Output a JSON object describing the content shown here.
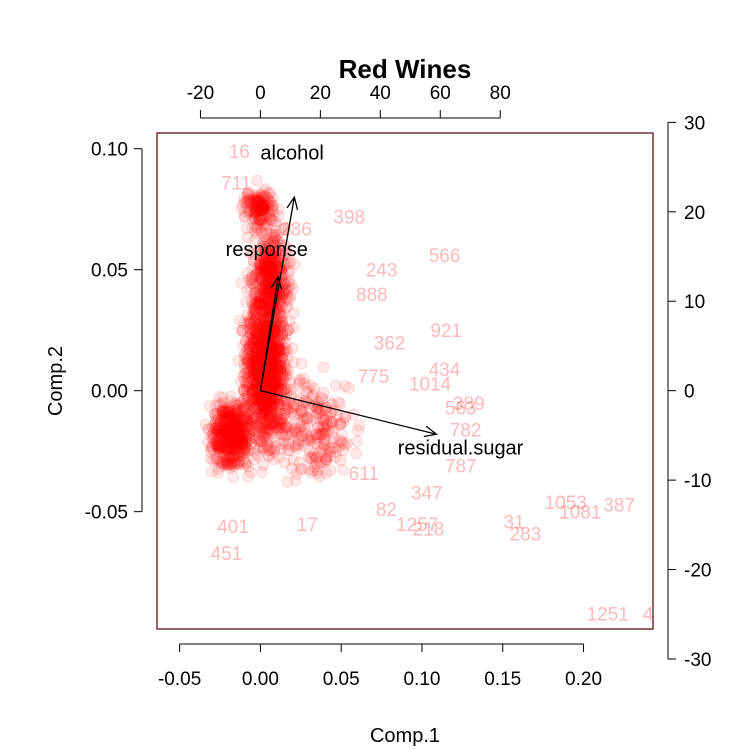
{
  "chart_data": {
    "type": "scatter",
    "title": "Red Wines",
    "xlabel": "Comp.1",
    "ylabel": "Comp.2",
    "xlim": [
      -0.064,
      0.243
    ],
    "ylim": [
      -0.0985,
      0.1065
    ],
    "x_ticks": [
      -0.05,
      0.0,
      0.05,
      0.1,
      0.15,
      0.2
    ],
    "x_tick_labels": [
      "-0.05",
      "0.00",
      "0.05",
      "0.10",
      "0.15",
      "0.20"
    ],
    "y_ticks": [
      -0.05,
      0.0,
      0.05,
      0.1
    ],
    "y_tick_labels": [
      "-0.05",
      "0.00",
      "0.05",
      "0.10"
    ],
    "top_axis": {
      "ticks": [
        -20,
        0,
        20,
        40,
        60,
        80
      ],
      "labels": [
        "-20",
        "0",
        "20",
        "40",
        "60",
        "80"
      ],
      "comp1_per_unit": 0.0018555
    },
    "right_axis": {
      "ticks": [
        -30,
        -20,
        -10,
        0,
        10,
        20,
        30
      ],
      "labels": [
        "-30",
        "-20",
        "-10",
        "0",
        "10",
        "20",
        "30"
      ],
      "comp2_per_unit": 0.0036964
    },
    "grid": false,
    "point_color": "#ff0000",
    "frame_color": "#4d0000",
    "points": [
      {
        "label": "16",
        "x": -0.013,
        "y": 0.099
      },
      {
        "label": "711",
        "x": -0.015,
        "y": 0.086
      },
      {
        "label": "398",
        "x": 0.055,
        "y": 0.072
      },
      {
        "label": "236",
        "x": 0.022,
        "y": 0.067
      },
      {
        "label": "566",
        "x": 0.114,
        "y": 0.056
      },
      {
        "label": "243",
        "x": 0.075,
        "y": 0.05
      },
      {
        "label": "888",
        "x": 0.069,
        "y": 0.04
      },
      {
        "label": "921",
        "x": 0.115,
        "y": 0.025
      },
      {
        "label": "362",
        "x": 0.08,
        "y": 0.02
      },
      {
        "label": "434",
        "x": 0.114,
        "y": 0.009
      },
      {
        "label": "1014",
        "x": 0.105,
        "y": 0.003
      },
      {
        "label": "775",
        "x": 0.07,
        "y": 0.006
      },
      {
        "label": "389",
        "x": 0.129,
        "y": -0.005
      },
      {
        "label": "563",
        "x": 0.124,
        "y": -0.007
      },
      {
        "label": "782",
        "x": 0.127,
        "y": -0.016
      },
      {
        "label": "787",
        "x": 0.124,
        "y": -0.031
      },
      {
        "label": "611",
        "x": 0.064,
        "y": -0.034
      },
      {
        "label": "347",
        "x": 0.103,
        "y": -0.042
      },
      {
        "label": "1053",
        "x": 0.189,
        "y": -0.046
      },
      {
        "label": "1081",
        "x": 0.198,
        "y": -0.05
      },
      {
        "label": "387",
        "x": 0.222,
        "y": -0.047
      },
      {
        "label": "31",
        "x": 0.157,
        "y": -0.054
      },
      {
        "label": "283",
        "x": 0.164,
        "y": -0.059
      },
      {
        "label": "218",
        "x": 0.104,
        "y": -0.057
      },
      {
        "label": "1257",
        "x": 0.097,
        "y": -0.055
      },
      {
        "label": "82",
        "x": 0.078,
        "y": -0.049
      },
      {
        "label": "17",
        "x": 0.029,
        "y": -0.055
      },
      {
        "label": "401",
        "x": -0.017,
        "y": -0.056
      },
      {
        "label": "451",
        "x": -0.021,
        "y": -0.067
      },
      {
        "label": "1251",
        "x": 0.215,
        "y": -0.092
      },
      {
        "label": "4",
        "x": 0.24,
        "y": -0.092
      }
    ],
    "arrows": [
      {
        "label": "alcohol",
        "x": 0.021,
        "y": 0.08
      },
      {
        "label": "response",
        "x": 0.011,
        "y": 0.047
      },
      {
        "label": "residual.sugar",
        "x": 0.109,
        "y": -0.018
      }
    ]
  }
}
